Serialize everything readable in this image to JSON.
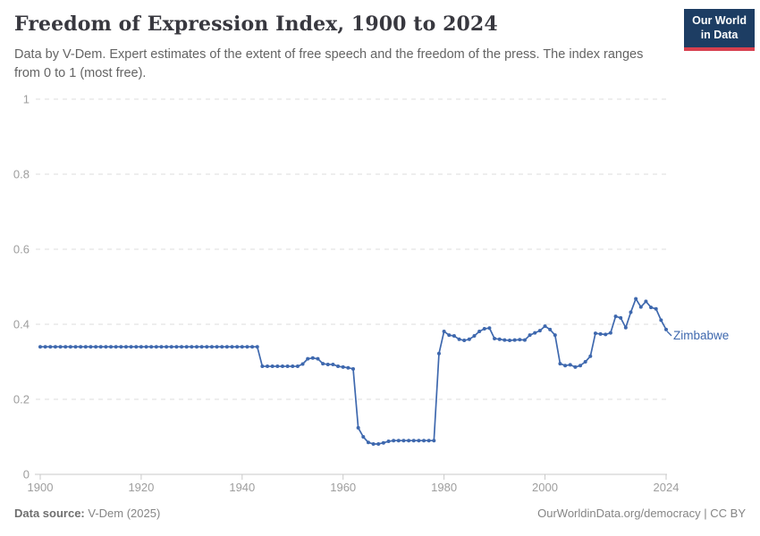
{
  "header": {
    "title": "Freedom of Expression Index, 1900 to 2024",
    "subtitle": "Data by V-Dem. Expert estimates of the extent of free speech and the freedom of the press. The index ranges from 0 to 1 (most free).",
    "logo": {
      "line1": "Our World",
      "line2": "in Data",
      "bg_color": "#1d3d63",
      "accent_color": "#d7404e"
    }
  },
  "chart_data": {
    "type": "line",
    "title": "Freedom of Expression Index, 1900 to 2024",
    "xlabel": "",
    "ylabel": "",
    "ylim": [
      0,
      1
    ],
    "x_range": [
      1900,
      2024
    ],
    "x_step_years": 1,
    "grid": "horizontal dashed gridlines on",
    "legend_position": "end-of-line label",
    "xticks": [
      1900,
      1920,
      1940,
      1960,
      1980,
      2000,
      2024
    ],
    "yticks": [
      0,
      0.2,
      0.4,
      0.6,
      0.8,
      1
    ],
    "axis_color": "#c9c9c9",
    "gridline_color": "#dedede",
    "series": [
      {
        "name": "Zimbabwe",
        "color": "#3e68ae",
        "x_start": 1900,
        "values": [
          0.34,
          0.34,
          0.34,
          0.34,
          0.34,
          0.34,
          0.34,
          0.34,
          0.34,
          0.34,
          0.34,
          0.34,
          0.34,
          0.34,
          0.34,
          0.34,
          0.34,
          0.34,
          0.34,
          0.34,
          0.34,
          0.34,
          0.34,
          0.34,
          0.34,
          0.34,
          0.34,
          0.34,
          0.34,
          0.34,
          0.34,
          0.34,
          0.34,
          0.34,
          0.34,
          0.34,
          0.34,
          0.34,
          0.34,
          0.34,
          0.34,
          0.34,
          0.34,
          0.34,
          0.288,
          0.288,
          0.288,
          0.288,
          0.288,
          0.288,
          0.288,
          0.288,
          0.294,
          0.308,
          0.31,
          0.308,
          0.295,
          0.293,
          0.293,
          0.288,
          0.286,
          0.284,
          0.281,
          0.124,
          0.1,
          0.085,
          0.081,
          0.081,
          0.084,
          0.088,
          0.09,
          0.09,
          0.09,
          0.09,
          0.09,
          0.09,
          0.09,
          0.09,
          0.09,
          0.322,
          0.381,
          0.371,
          0.369,
          0.36,
          0.357,
          0.36,
          0.369,
          0.381,
          0.388,
          0.39,
          0.362,
          0.36,
          0.358,
          0.357,
          0.358,
          0.359,
          0.358,
          0.371,
          0.377,
          0.383,
          0.395,
          0.386,
          0.371,
          0.295,
          0.29,
          0.292,
          0.286,
          0.29,
          0.3,
          0.315,
          0.376,
          0.374,
          0.373,
          0.377,
          0.421,
          0.417,
          0.391,
          0.432,
          0.468,
          0.446,
          0.461,
          0.445,
          0.441,
          0.411,
          0.386
        ]
      }
    ]
  },
  "footer": {
    "source_label": "Data source:",
    "source_value": " V-Dem (2025)",
    "credit": "OurWorldinData.org/democracy | CC BY"
  }
}
